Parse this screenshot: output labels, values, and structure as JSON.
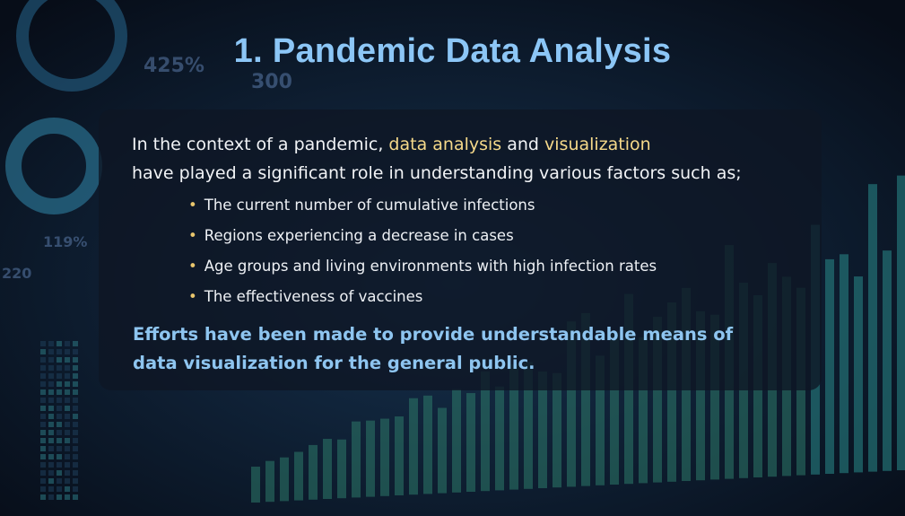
{
  "header": {
    "title": "1. Pandemic Data Analysis"
  },
  "background": {
    "labels": [
      "425%",
      "300",
      "119%",
      "220"
    ]
  },
  "intro": {
    "before": "In the context of a pandemic,",
    "highlight_1": "data analysis",
    "middle": "and",
    "highlight_2": "visualization",
    "line_2": "have played a significant role in understanding various factors such as;"
  },
  "bullets": [
    "The current number of cumulative infections",
    "Regions experiencing a decrease in cases",
    "Age groups and living environments with high infection rates",
    "The effectiveness of vaccines"
  ],
  "closing": {
    "lines": [
      "Efforts have been made to provide understandable means of",
      "data visualization for the general public."
    ]
  }
}
